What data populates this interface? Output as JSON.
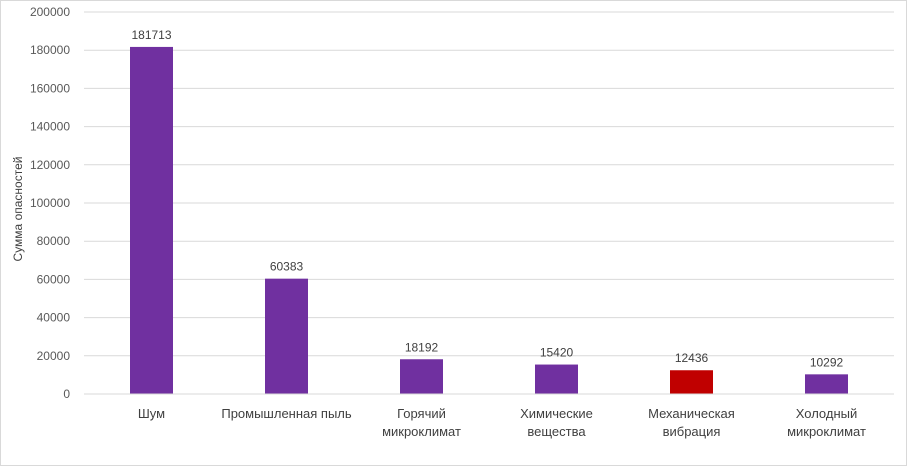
{
  "chart_data": {
    "type": "bar",
    "title": "",
    "xlabel": "",
    "ylabel": "Сумма опасностей",
    "ylim": [
      0,
      200000
    ],
    "ytick_step": 20000,
    "yticks": [
      "0",
      "20000",
      "40000",
      "60000",
      "80000",
      "100000",
      "120000",
      "140000",
      "160000",
      "180000",
      "200000"
    ],
    "grid": true,
    "legend": "none",
    "categories": [
      [
        "Шум"
      ],
      [
        "Промышленная пыль"
      ],
      [
        "Горячий",
        "микроклимат"
      ],
      [
        "Химические",
        "вещества"
      ],
      [
        "Механическая",
        "вибрация"
      ],
      [
        "Холодный",
        "микроклимат"
      ]
    ],
    "values": [
      181713,
      60383,
      18192,
      15420,
      12436,
      10292
    ],
    "data_labels": [
      "181713",
      "60383",
      "18192",
      "15420",
      "12436",
      "10292"
    ],
    "bar_colors": [
      "#7030a0",
      "#7030a0",
      "#7030a0",
      "#7030a0",
      "#c00000",
      "#7030a0"
    ]
  }
}
